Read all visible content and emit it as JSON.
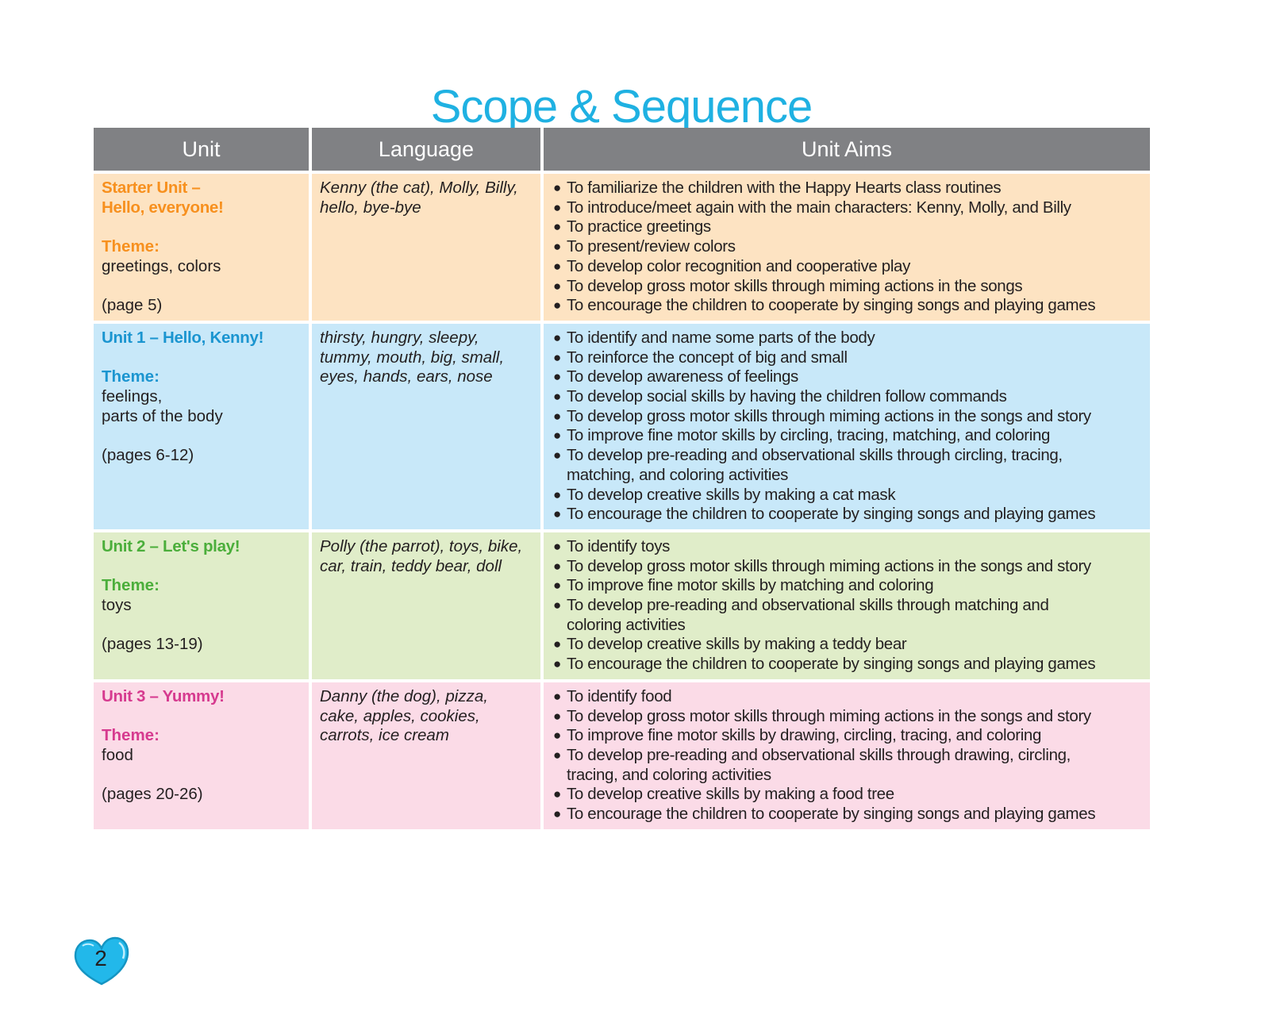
{
  "title": "Scope & Sequence",
  "headers": [
    "Unit",
    "Language",
    "Unit Aims"
  ],
  "colors": {
    "title": "#1fb1e2",
    "header": "#808184",
    "starter": "#f7901e",
    "unit1": "#1b95d0",
    "unit2": "#4bae3b",
    "unit3": "#d63a8f"
  },
  "rows": [
    {
      "title": "Starter Unit –\nHello, everyone!",
      "theme_label": "Theme:",
      "theme": "greetings, colors",
      "pages": "(page 5)",
      "language": "Kenny (the cat), Molly, Billy,\nhello, bye-bye",
      "aims": [
        "To familiarize the children with the Happy Hearts class routines",
        "To introduce/meet again with the main characters: Kenny, Molly, and Billy",
        "To practice greetings",
        "To present/review colors",
        "To develop color recognition and cooperative play",
        "To develop gross motor skills through miming actions in the songs",
        "To encourage the children to cooperate by singing songs and playing games"
      ]
    },
    {
      "title": "Unit 1 – Hello, Kenny!",
      "theme_label": "Theme:",
      "theme": "feelings,\nparts of the body",
      "pages": "(pages 6-12)",
      "language": "thirsty, hungry, sleepy,\ntummy, mouth, big, small,\neyes, hands, ears, nose",
      "aims": [
        "To identify and name some parts of the body",
        "To reinforce the concept of big and small",
        "To develop awareness of feelings",
        "To develop social skills by having the children follow commands",
        "To develop gross motor skills through miming actions in the songs and story",
        "To improve fine motor skills by circling, tracing, matching, and coloring",
        "To develop pre-reading and observational skills through circling, tracing,\nmatching, and coloring activities",
        "To develop creative skills by making a cat mask",
        "To encourage the children to cooperate by singing songs and playing games"
      ]
    },
    {
      "title": "Unit 2 – Let's play!",
      "theme_label": "Theme:",
      "theme": "toys",
      "pages": "(pages 13-19)",
      "language": "Polly (the parrot), toys, bike,\ncar, train, teddy bear, doll",
      "aims": [
        "To identify toys",
        "To develop gross motor skills through miming actions in the songs and story",
        "To improve fine motor skills by matching and coloring",
        "To develop pre-reading and observational skills through matching and\ncoloring activities",
        "To develop creative skills by making a teddy bear",
        "To encourage the children to cooperate by singing songs and playing games"
      ]
    },
    {
      "title": "Unit 3 – Yummy!",
      "theme_label": "Theme:",
      "theme": "food",
      "pages": "(pages 20-26)",
      "language": "Danny (the dog), pizza,\ncake, apples, cookies,\ncarrots, ice cream",
      "aims": [
        "To identify food",
        "To develop gross motor skills through miming actions in the songs and story",
        "To improve fine motor skills by drawing, circling, tracing, and coloring",
        "To develop pre-reading and observational skills through drawing, circling,\ntracing, and coloring activities",
        "To develop creative skills by making a food tree",
        "To encourage the children to cooperate by singing songs and playing games"
      ]
    }
  ],
  "page_number": "2",
  "page_icon": "heart-icon"
}
